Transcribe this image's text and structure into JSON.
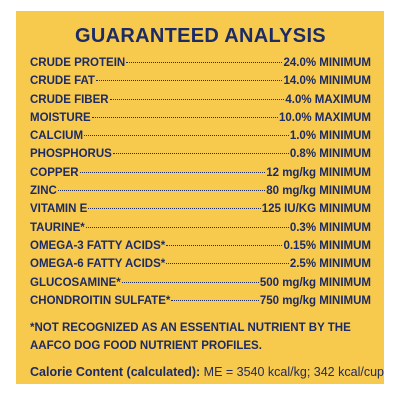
{
  "title": "GUARANTEED ANALYSIS",
  "rows": [
    [
      "CRUDE PROTEIN",
      "24.0% MINIMUM"
    ],
    [
      "CRUDE FAT",
      "14.0% MINIMUM"
    ],
    [
      "CRUDE FIBER",
      "4.0% MAXIMUM"
    ],
    [
      "MOISTURE",
      "10.0% MAXIMUM"
    ],
    [
      "CALCIUM",
      "1.0% MINIMUM"
    ],
    [
      "PHOSPHORUS",
      "0.8% MINIMUM"
    ],
    [
      "COPPER",
      "12 mg/kg MINIMUM"
    ],
    [
      "ZINC",
      "80 mg/kg MINIMUM"
    ],
    [
      "VITAMIN E",
      "125 IU/KG MINIMUM"
    ],
    [
      "TAURINE*",
      "0.3% MINIMUM"
    ],
    [
      "OMEGA-3 FATTY ACIDS*",
      "0.15% MINIMUM"
    ],
    [
      "OMEGA-6 FATTY ACIDS*",
      "2.5% MINIMUM"
    ],
    [
      "GLUCOSAMINE*",
      "500 mg/kg MINIMUM"
    ],
    [
      "CHONDROITIN SULFATE*",
      "750 mg/kg MINIMUM"
    ]
  ],
  "footnote": "*NOT RECOGNIZED AS AN ESSENTIAL NUTRIENT BY THE AAFCO DOG FOOD NUTRIENT PROFILES.",
  "calorie": {
    "label": "Calorie Content (calculated):",
    "value": "ME = 3540 kcal/kg; 342 kcal/cup"
  }
}
